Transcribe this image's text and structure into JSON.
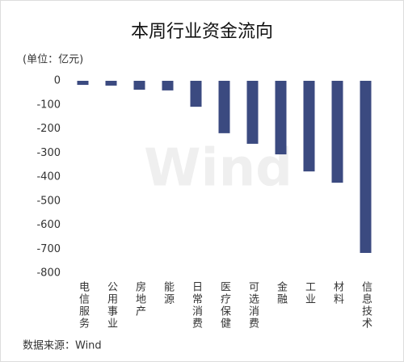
{
  "chart_data": {
    "type": "bar",
    "title": "本周行业资金流向",
    "unit": "(单位：亿元)",
    "source": "数据来源：Wind",
    "watermark": "Wind",
    "categories": [
      "电信服务",
      "公用事业",
      "房地产",
      "能源",
      "日常消费",
      "医疗保健",
      "可选消费",
      "金融",
      "工业",
      "材料",
      "信息技术"
    ],
    "values": [
      -17,
      -20,
      -37,
      -40,
      -108,
      -218,
      -262,
      -306,
      -377,
      -424,
      -716
    ],
    "color": "#3b4a80",
    "ylim": [
      -800,
      0
    ],
    "yticks": [
      0,
      -100,
      -200,
      -300,
      -400,
      -500,
      -600,
      -700,
      -800
    ],
    "grid": false
  }
}
